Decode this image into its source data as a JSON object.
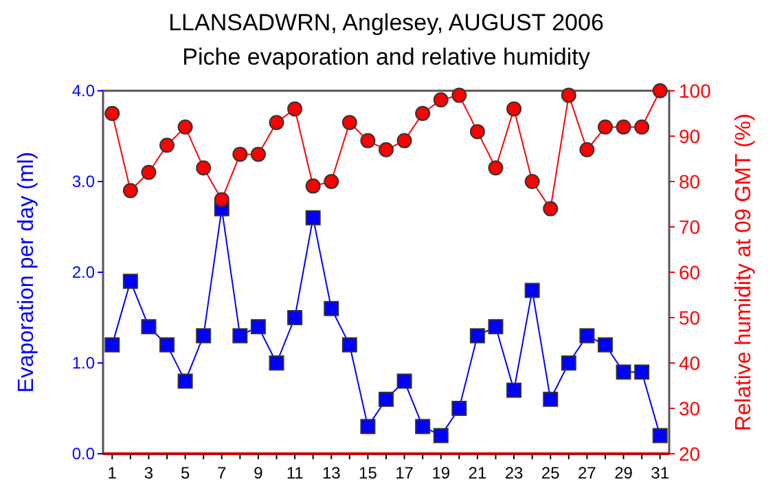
{
  "chart_data": {
    "type": "line",
    "title": "LLANSADWRN, Anglesey, AUGUST 2006",
    "subtitle": "Piche evaporation and relative humidity",
    "ylabel": "Evaporation per day (ml)",
    "y2label": "Relative humidity at 09 GMT (%)",
    "x": [
      1,
      2,
      3,
      4,
      5,
      6,
      7,
      8,
      9,
      10,
      11,
      12,
      13,
      14,
      15,
      16,
      17,
      18,
      19,
      20,
      21,
      22,
      23,
      24,
      25,
      26,
      27,
      28,
      29,
      30,
      31
    ],
    "xlim": [
      0.5,
      31.5
    ],
    "xticks": [
      1,
      {
        "value": 2,
        "label": null
      },
      3,
      {
        "value": 4,
        "label": null
      },
      5,
      {
        "value": 6,
        "label": null
      },
      7,
      {
        "value": 8,
        "label": null
      },
      9,
      {
        "value": 10,
        "label": null
      },
      11,
      {
        "value": 12,
        "label": null
      },
      13,
      {
        "value": 14,
        "label": null
      },
      15,
      {
        "value": 16,
        "label": null
      },
      17,
      {
        "value": 18,
        "label": null
      },
      19,
      {
        "value": 20,
        "label": null
      },
      21,
      {
        "value": 22,
        "label": null
      },
      23,
      {
        "value": 24,
        "label": null
      },
      25,
      {
        "value": 26,
        "label": null
      },
      27,
      {
        "value": 28,
        "label": null
      },
      29,
      {
        "value": 30,
        "label": null
      },
      31
    ],
    "ylim": [
      0,
      4
    ],
    "yticks": [
      {
        "value": 0,
        "label": "0.0"
      },
      {
        "value": 1,
        "label": "1.0"
      },
      {
        "value": 2,
        "label": "2.0"
      },
      {
        "value": 3,
        "label": "3.0"
      },
      {
        "value": 4,
        "label": "4.0"
      }
    ],
    "y2lim": [
      20,
      100
    ],
    "y2ticks": [
      20,
      30,
      40,
      50,
      60,
      70,
      80,
      90,
      100
    ],
    "grid": false,
    "line_style": "solid",
    "series": [
      {
        "color": "#0000ff",
        "marker": "square",
        "values": [
          1.2,
          1.9,
          1.4,
          1.2,
          0.8,
          1.3,
          2.7,
          1.3,
          1.4,
          1.0,
          1.5,
          2.6,
          1.6,
          1.2,
          0.3,
          0.6,
          0.8,
          0.3,
          0.2,
          0.5,
          1.3,
          1.4,
          0.7,
          1.8,
          0.6,
          1.0,
          1.3,
          1.2,
          0.9,
          0.9,
          0.2
        ]
      },
      {
        "color": "#ff0000",
        "marker": "circle",
        "axis": "y2",
        "values": [
          95,
          78,
          82,
          88,
          92,
          83,
          76,
          86,
          86,
          93,
          96,
          79,
          80,
          93,
          89,
          87,
          89,
          95,
          98,
          99,
          91,
          83,
          96,
          80,
          74,
          99,
          87,
          92,
          92,
          92,
          100
        ]
      }
    ]
  }
}
